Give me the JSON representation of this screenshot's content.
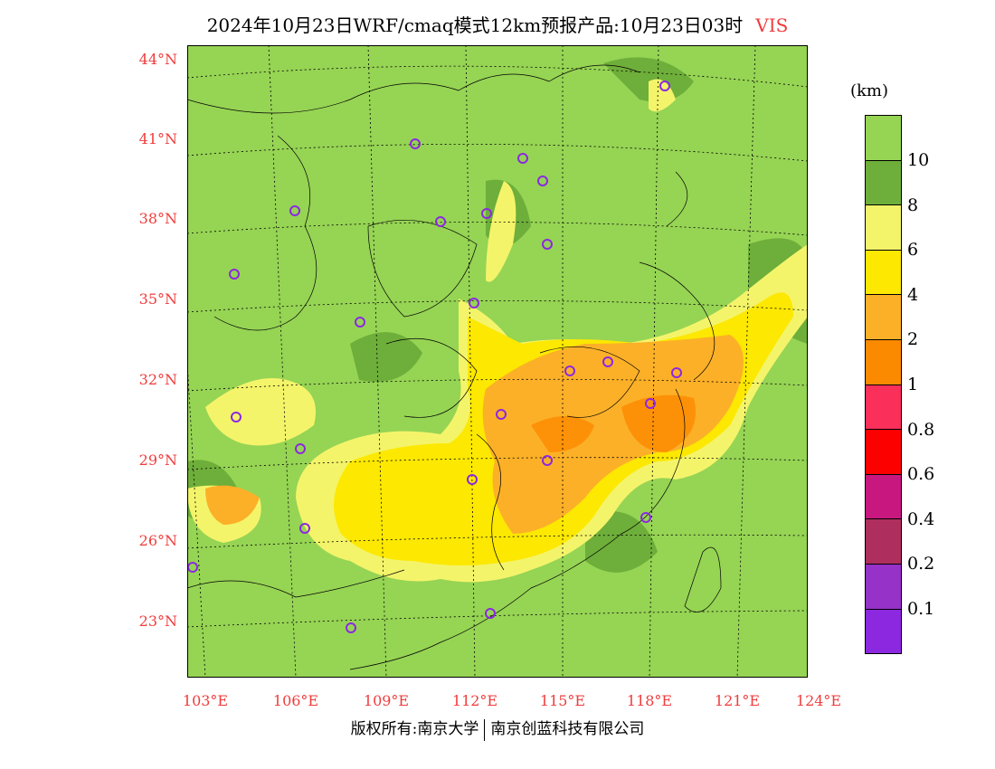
{
  "title": {
    "text": "2024年10月23日WRF/cmaq模式12km预报产品:10月23日03时",
    "variable": "VIS"
  },
  "latitude_labels": [
    "44°N",
    "41°N",
    "38°N",
    "35°N",
    "32°N",
    "29°N",
    "26°N",
    "23°N"
  ],
  "longitude_labels": [
    "103°E",
    "106°E",
    "109°E",
    "112°E",
    "115°E",
    "118°E",
    "121°E",
    "124°E"
  ],
  "colorbar": {
    "unit": "(km)",
    "colors": [
      "#96d454",
      "#6eae3a",
      "#f4f46a",
      "#fce800",
      "#fcb028",
      "#fc8a00",
      "#fa2f5a",
      "#fc0000",
      "#c8177f",
      "#ae2f5e",
      "#9632c8",
      "#8c28e0"
    ],
    "labels": [
      "10",
      "8",
      "6",
      "4",
      "2",
      "1",
      "0.8",
      "0.6",
      "0.4",
      "0.2",
      "0.1"
    ]
  },
  "footer": {
    "left": "版权所有:南京大学",
    "right": "南京创蓝科技有限公司"
  }
}
